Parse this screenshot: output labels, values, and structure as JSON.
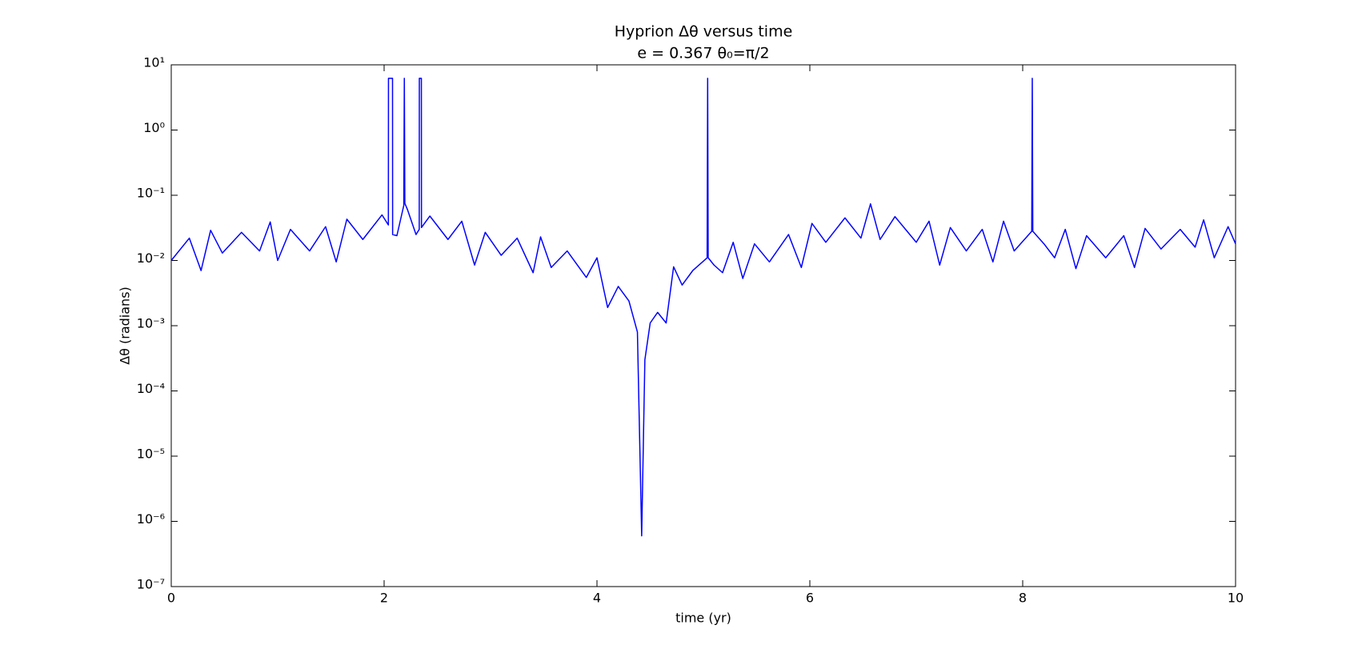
{
  "chart_data": {
    "type": "line",
    "title": "Hyprion  Δθ versus time",
    "subtitle": "e = 0.367  θ₀=π/2",
    "x_label": "time (yr)",
    "y_label": "Δθ (radians)",
    "yscale": "log",
    "xlim": [
      0,
      10
    ],
    "xticks": [
      0,
      2,
      4,
      6,
      8,
      10
    ],
    "ylim": [
      1e-07,
      10
    ],
    "yticks": [
      {
        "value": 10,
        "label": "10¹"
      },
      {
        "value": 1,
        "label": "10⁰"
      },
      {
        "value": 0.1,
        "label": "10⁻¹"
      },
      {
        "value": 0.01,
        "label": "10⁻²"
      },
      {
        "value": 0.001,
        "label": "10⁻³"
      },
      {
        "value": 0.0001,
        "label": "10⁻⁴"
      },
      {
        "value": 1e-05,
        "label": "10⁻⁵"
      },
      {
        "value": 1e-06,
        "label": "10⁻⁶"
      },
      {
        "value": 1e-07,
        "label": "10⁻⁷"
      }
    ],
    "x": [
      0,
      0.17,
      0.28,
      0.37,
      0.48,
      0.66,
      0.83,
      0.93,
      1.0,
      1.12,
      1.3,
      1.45,
      1.55,
      1.65,
      1.8,
      1.98,
      2.04,
      2.041,
      2.079,
      2.08,
      2.12,
      2.185,
      2.19,
      2.195,
      2.22,
      2.3,
      2.33,
      2.331,
      2.35,
      2.351,
      2.43,
      2.6,
      2.73,
      2.85,
      2.95,
      3.1,
      3.25,
      3.4,
      3.47,
      3.57,
      3.72,
      3.9,
      4.0,
      4.1,
      4.2,
      4.3,
      4.38,
      4.42,
      4.45,
      4.5,
      4.57,
      4.65,
      4.72,
      4.8,
      4.9,
      5.035,
      5.04,
      5.045,
      5.1,
      5.18,
      5.28,
      5.37,
      5.48,
      5.62,
      5.8,
      5.92,
      6.02,
      6.15,
      6.33,
      6.48,
      6.57,
      6.66,
      6.8,
      7.0,
      7.12,
      7.22,
      7.32,
      7.47,
      7.62,
      7.72,
      7.82,
      7.92,
      8.085,
      8.09,
      8.095,
      8.2,
      8.3,
      8.4,
      8.5,
      8.6,
      8.78,
      8.95,
      9.05,
      9.15,
      9.3,
      9.48,
      9.62,
      9.7,
      9.8,
      9.93,
      10
    ],
    "series": [
      {
        "color": "#0000ff",
        "values": [
          0.01,
          0.022,
          0.007,
          0.029,
          0.013,
          0.027,
          0.014,
          0.039,
          0.01,
          0.03,
          0.014,
          0.033,
          0.0095,
          0.043,
          0.021,
          0.05,
          0.035,
          6.2,
          6.2,
          0.025,
          0.024,
          0.07,
          6.2,
          0.075,
          0.06,
          0.025,
          0.03,
          6.2,
          6.2,
          0.032,
          0.048,
          0.021,
          0.04,
          0.0085,
          0.027,
          0.012,
          0.022,
          0.0065,
          0.023,
          0.0078,
          0.014,
          0.0055,
          0.011,
          0.0019,
          0.004,
          0.0024,
          0.0008,
          6e-07,
          0.0003,
          0.0011,
          0.0016,
          0.0011,
          0.008,
          0.0042,
          0.007,
          0.011,
          6.2,
          0.011,
          0.0085,
          0.0065,
          0.019,
          0.0053,
          0.018,
          0.0095,
          0.025,
          0.0078,
          0.037,
          0.019,
          0.045,
          0.022,
          0.074,
          0.021,
          0.047,
          0.019,
          0.04,
          0.0085,
          0.032,
          0.014,
          0.03,
          0.0095,
          0.04,
          0.014,
          0.028,
          6.2,
          0.028,
          0.018,
          0.011,
          0.03,
          0.0075,
          0.024,
          0.011,
          0.024,
          0.0078,
          0.031,
          0.015,
          0.03,
          0.016,
          0.042,
          0.011,
          0.033,
          0.018
        ]
      }
    ]
  }
}
